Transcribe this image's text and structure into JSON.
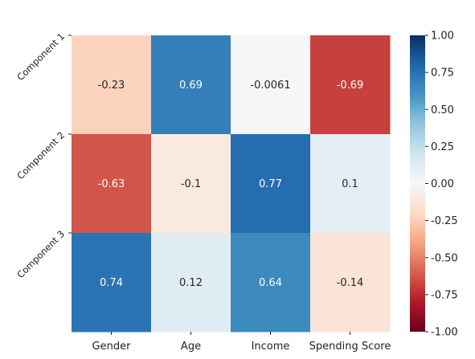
{
  "chart_data": {
    "type": "heatmap",
    "title": "",
    "xlabel": "",
    "ylabel": "",
    "x_categories": [
      "Gender",
      "Age",
      "Income",
      "Spending Score"
    ],
    "y_categories": [
      "Component 1",
      "Component 2",
      "Component 3"
    ],
    "values": [
      [
        -0.23,
        0.69,
        -0.0061,
        -0.69
      ],
      [
        -0.63,
        -0.1,
        0.77,
        0.1
      ],
      [
        0.74,
        0.12,
        0.64,
        -0.14
      ]
    ],
    "value_labels": [
      [
        "-0.23",
        "0.69",
        "-0.0061",
        "-0.69"
      ],
      [
        "-0.63",
        "-0.1",
        "0.77",
        "0.1"
      ],
      [
        "0.74",
        "0.12",
        "0.64",
        "-0.14"
      ]
    ],
    "colorbar": {
      "colormap": "RdBu",
      "vmin": -1.0,
      "vmax": 1.0,
      "ticks": [
        "-1.00",
        "-0.75",
        "-0.50",
        "-0.25",
        "0.00",
        "0.25",
        "0.50",
        "0.75",
        "1.00"
      ]
    },
    "grid": false,
    "legend": "colorbar-right"
  }
}
